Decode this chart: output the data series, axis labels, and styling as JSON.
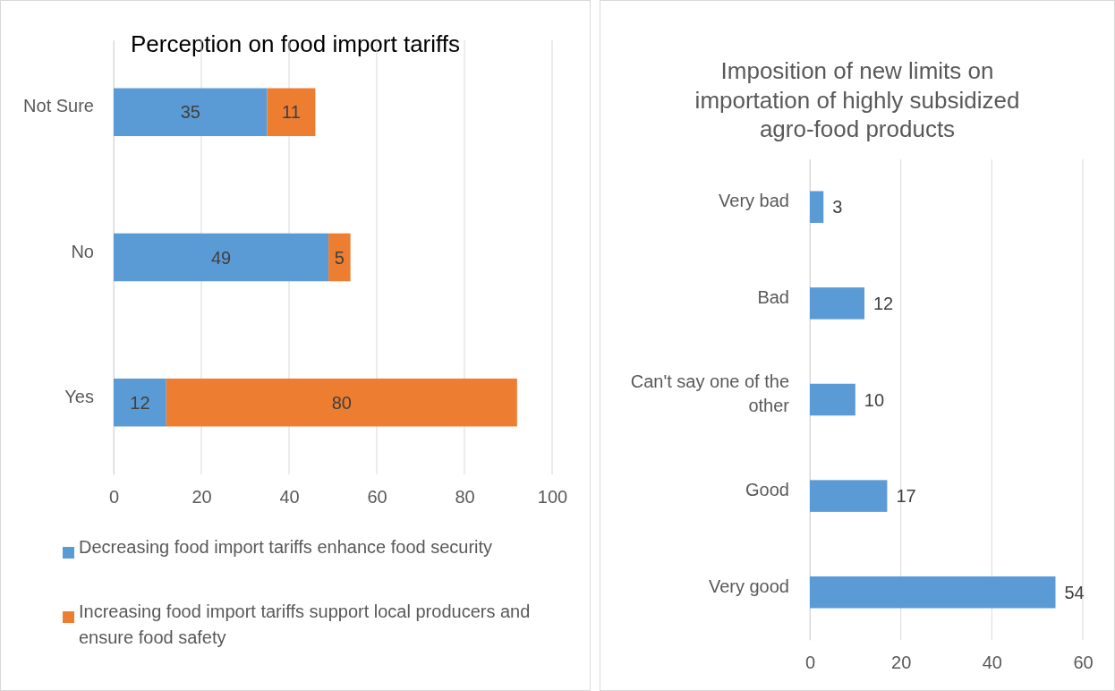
{
  "chart_data": [
    {
      "type": "bar",
      "title": "Perception on food import tariffs",
      "orientation": "horizontal",
      "stacked": true,
      "categories": [
        "Not Sure",
        "No",
        "Yes"
      ],
      "series": [
        {
          "name": "Decreasing food import tariffs enhance food security",
          "color": "#5b9bd5",
          "values": [
            35,
            49,
            12
          ]
        },
        {
          "name": "Increasing food import tariffs support local producers and ensure food safety",
          "color": "#ed7d31",
          "values": [
            11,
            5,
            80
          ]
        }
      ],
      "xlim": [
        0,
        100
      ],
      "xticks": [
        0,
        20,
        40,
        60,
        80,
        100
      ],
      "grid": "x",
      "legend": "bottom",
      "data_labels": true
    },
    {
      "type": "bar",
      "title": "Imposition of new limits on importation of  highly subsidized agro-food products",
      "orientation": "horizontal",
      "categories": [
        "Very bad",
        "Bad",
        "Can't say one of the other",
        "Good",
        "Very good"
      ],
      "series": [
        {
          "color": "#5b9bd5",
          "values": [
            3,
            12,
            10,
            17,
            54
          ]
        }
      ],
      "xlim": [
        0,
        60
      ],
      "xticks": [
        0,
        20,
        40,
        60
      ],
      "grid": "x",
      "data_labels": true
    }
  ]
}
